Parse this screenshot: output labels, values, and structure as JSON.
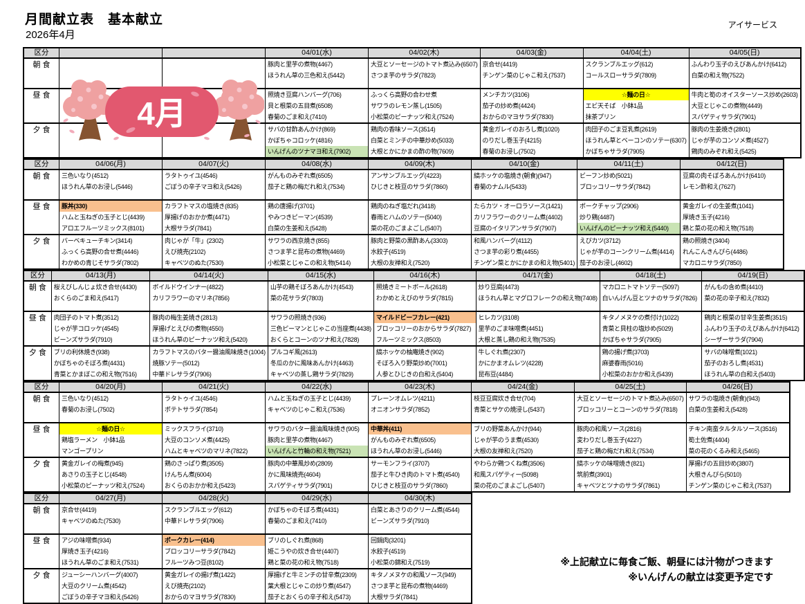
{
  "header": {
    "title": "月間献立表　基本献立",
    "subtitle": "2026年4月",
    "company": "アイサービス"
  },
  "month_badge": "4月",
  "labels": {
    "kubun": "区分",
    "meals": [
      {
        "key": "b",
        "label": "朝 食"
      },
      {
        "key": "l",
        "label": "昼 食"
      },
      {
        "key": "d",
        "label": "夕 食"
      }
    ]
  },
  "notes": [
    "※上記献立に毎食ご飯、朝昼には汁物がつきます",
    "※いんげんの献立は変更予定です"
  ],
  "highlight_colors": {
    "yellow": "#ffff00",
    "orange": "#f9c08e",
    "green": "#c9e3b4"
  },
  "weeks": [
    {
      "days": [
        {
          "date": "",
          "b": [],
          "l": [],
          "d": []
        },
        {
          "date": "",
          "b": [],
          "l": [],
          "d": []
        },
        {
          "date": "04/01(水)",
          "b": [
            "豚肉と里芋の煮物(4467)",
            "ほうれん草の三色和え(5442)"
          ],
          "l": [
            "照焼き豆腐ハンバーグ(706)",
            "貝と根菜の五目煮(6508)",
            "春菊のごま和え(7410)"
          ],
          "d": [
            "サバの甘酢あんかけ(869)",
            "かぼちゃコロッケ(4816)",
            {
              "text": "いんげんのツナマヨ和え(7902)",
              "hl": "green"
            }
          ]
        },
        {
          "date": "04/02(木)",
          "b": [
            "大豆とソーセージのトマト煮込み(6507)",
            "さつま芋のサラダ(7823)"
          ],
          "l": [
            "ふっくら高野の合わせ煮",
            "サワラのレモン蒸し(1505)",
            "小松菜のピーナッツ和え(7524)"
          ],
          "d": [
            "鶏肉の香味ソース(3514)",
            "白菜とミンチの中華炒め(5033)",
            "大根とかにかまの酢の物(7609)"
          ]
        },
        {
          "date": "04/03(金)",
          "b": [
            "京合せ(4419)",
            "チンゲン菜のじゃこ和え(7537)"
          ],
          "l": [
            "メンチカツ(3106)",
            "茄子の炒め煮(4424)",
            "おからのマヨサラダ(7830)"
          ],
          "d": [
            "黄金ガレイのおろし煮(1020)",
            "のりだし巻玉子(4215)",
            "春菊のお浸し(7502)"
          ]
        },
        {
          "date": "04/04(土)",
          "b": [
            "スクランブルエッグ(612)",
            "コールスローサラダ(7809)"
          ],
          "l": [
            {
              "text": "☆麺の日☆",
              "hl": "yellow"
            },
            "エビ天そば　小鉢1品",
            "抹茶プリン"
          ],
          "d": [
            "肉団子のごま豆乳煮(2619)",
            "ほうれん草とベーコンのソテー(6307)",
            "かぼちゃサラダ(7905)"
          ]
        },
        {
          "date": "04/05(日)",
          "b": [
            "ふんわり玉子のえびあんかけ(6412)",
            "白菜の和え物(7522)"
          ],
          "l": [
            "牛肉と筍のオイスターソース炒め(2603)",
            "大豆とじゃこの煮物(4449)",
            "スパゲティサラダ(7901)"
          ],
          "d": [
            "豚肉の生姜焼き(2801)",
            "じゃが芋のコンソメ煮(4527)",
            "鶏肉のみぞれ和え(5425)"
          ]
        }
      ]
    },
    {
      "days": [
        {
          "date": "04/06(月)",
          "b": [
            "三色いなり(4512)",
            "ほうれん草のお浸し(5446)"
          ],
          "l": [
            {
              "text": "豚丼(330)",
              "hl": "orange"
            },
            "ハムと玉ねぎの玉子とじ(4439)",
            "アロエフルーツミックス(8101)"
          ],
          "d": [
            "バーベキューチキン(3414)",
            "ふっくら高野の合せ煮(4446)",
            "わかめの青じそサラダ(7802)"
          ]
        },
        {
          "date": "04/07(火)",
          "b": [
            "ラタトゥイユ(4546)",
            "ごぼうの辛子マヨ和え(5426)"
          ],
          "l": [
            "カラフトマスの塩焼き(835)",
            "厚揚げのおかか煮(4471)",
            "大根サラダ(7841)"
          ],
          "d": [
            "肉じゃが「牛」(2302)",
            "えび焼売(2102)",
            "キャベツのぬた(7530)"
          ]
        },
        {
          "date": "04/08(水)",
          "b": [
            "がんものみぞれ煮(6505)",
            "茄子と鶏の梅だれ和え(7534)"
          ],
          "l": [
            "鶏の唐揚げ(3701)",
            "やみつきピーマン(4539)",
            "白菜の生姜和え(5428)"
          ],
          "d": [
            "サワラの西京焼き(855)",
            "さつま芋と昆布の煮物(4469)",
            "小松菜とじゃこの和え物(5414)"
          ]
        },
        {
          "date": "04/09(木)",
          "b": [
            "アンサンブルエッグ(4223)",
            "ひじきと枝豆のサラダ(7860)"
          ],
          "l": [
            "鶏肉のねぎ塩だれ(3418)",
            "春雨とハムのソテー(5040)",
            "菜の花のごまよごし(5407)"
          ],
          "d": [
            "豚肉と野菜の黒酢あん(3303)",
            "水餃子(4519)",
            "大根の友禅和え(7520)"
          ]
        },
        {
          "date": "04/10(金)",
          "b": [
            "縞ホッケの塩焼き(朝食)(947)",
            "春菊のナムル(5433)"
          ],
          "l": [
            "たらカツ・オーロラソース(1421)",
            "カリフラワーのクリーム煮(4402)",
            "豆腐のイタリアンサラダ(7907)"
          ],
          "d": [
            "和風ハンバーグ(4112)",
            "さつま芋の彩り煮(4455)",
            "チンゲン菜とかにかまの和え物(5401)"
          ]
        },
        {
          "date": "04/11(土)",
          "b": [
            "ビーフン炒め(5021)",
            "ブロッコリーサラダ(7842)"
          ],
          "l": [
            "ポークチャップ(2906)",
            "炒り鶏(4487)",
            {
              "text": "いんげんのピーナッツ和え(5440)",
              "hl": "green"
            }
          ],
          "d": [
            "えびカツ(3712)",
            "じゃが芋のコーンクリーム煮(4414)",
            "茄子のお浸し(4602)"
          ]
        },
        {
          "date": "04/12(日)",
          "b": [
            "豆腐の肉そぼろあんかけ(6410)",
            "レモン酢和え(7627)"
          ],
          "l": [
            "黄金ガレイの生姜煮(1041)",
            "厚焼き玉子(4216)",
            "鶏と菜の花の和え物(7518)"
          ],
          "d": [
            "鶏の照焼き(3404)",
            "れんこんきんぴら(4486)",
            "マカロニサラダ(7850)"
          ]
        }
      ]
    },
    {
      "days": [
        {
          "date": "04/13(月)",
          "b": [
            "桜えびしんじょ炊き合せ(4430)",
            "おくらのごま和え(5417)"
          ],
          "l": [
            "肉団子のトマト煮(3512)",
            "じゃが芋コロッケ(4545)",
            "ビーンズサラダ(7910)"
          ],
          "d": [
            "ブリの利休焼き(938)",
            "かぼちゃのそぼろ煮(4431)",
            "青菜とかまぼこの和え物(7516)"
          ]
        },
        {
          "date": "04/14(火)",
          "b": [
            "ボイルドウインナー(4822)",
            "カリフラワーのマリネ(7856)"
          ],
          "l": [
            "豚肉の梅生姜焼き(2813)",
            "厚揚げとえびの煮物(4550)",
            "ほうれん草のピーナッツ和え(5420)"
          ],
          "d": [
            "カラフトマスのバター醤油風味焼き(1004)",
            "焼豚ソテー(5012)",
            "中華ドレサラダ(7906)"
          ]
        },
        {
          "date": "04/15(水)",
          "b": [
            "山芋の鶏そぼろあんかけ(4543)",
            "菜の花サラダ(7803)"
          ],
          "l": [
            "サワラの照焼き(936)",
            "三色ピーマンとじゃこの当座煮(4438)",
            "おくらとコーンのツナ和え(7828)"
          ],
          "d": [
            "プルコギ風(2613)",
            "冬瓜のかに風味あんかけ(4463)",
            "キャベツの蒸し鶏サラダ(7829)"
          ]
        },
        {
          "date": "04/16(木)",
          "b": [
            "照焼きミートボール(2618)",
            "わかめとえびのサラダ(7815)"
          ],
          "l": [
            {
              "text": "マイルドビーフカレー(421)",
              "hl": "orange"
            },
            "ブロッコリーのおからサラダ(7827)",
            "フルーツミックス(8503)"
          ],
          "d": [
            "縞ホッケの柚庵焼き(902)",
            "そぼろ入り野菜炒め(7001)",
            "人参とひじきの白和え(5404)"
          ]
        },
        {
          "date": "04/17(金)",
          "b": [
            "炒り豆腐(4473)",
            "ほうれん草とマグロフレークの和え物(7408)"
          ],
          "l": [
            "ヒレカツ(3108)",
            "里芋のごま味噌煮(4451)",
            "大根と蒸し鶏の和え物(7535)"
          ],
          "d": [
            "牛しぐれ煮(2307)",
            "かにかまオムレツ(4228)",
            "昆布豆(4484)"
          ]
        },
        {
          "date": "04/18(土)",
          "b": [
            "マカロニトマトソテー(5097)",
            "白いんげん豆とツナのサラダ(7826)"
          ],
          "l": [
            "キタノメヌケの煮付け(1022)",
            "青菜と貝柱の塩炒め(5029)",
            "かぼちゃサラダ(7905)"
          ],
          "d": [
            "鶏の揚げ煮(3703)",
            "麻婆春雨(5016)",
            "小松菜のおかか和え(5439)"
          ]
        },
        {
          "date": "04/19(日)",
          "b": [
            "がんもの含め煮(4410)",
            "菜の花の辛子和え(7832)"
          ],
          "l": [
            "鶏肉と根菜の甘辛生姜煮(3515)",
            "ふんわり玉子のえびあんかけ(6412)",
            "シーザーサラダ(7904)"
          ],
          "d": [
            "サバの味噌煮(1021)",
            "茄子のおろし煮(4531)",
            "ほうれん草の白和え(5403)"
          ]
        }
      ]
    },
    {
      "days": [
        {
          "date": "04/20(月)",
          "b": [
            "三色いなり(4512)",
            "春菊のお浸し(7502)"
          ],
          "l": [
            {
              "text": "☆麺の日☆",
              "hl": "yellow"
            },
            "鶏塩ラーメン　小鉢1品",
            "マンゴープリン"
          ],
          "d": [
            "黄金ガレイの梅煮(945)",
            "あさりの玉子とじ(4548)",
            "小松菜のピーナッツ和え(7524)"
          ]
        },
        {
          "date": "04/21(火)",
          "b": [
            "ラタトゥイユ(4546)",
            "ポテトサラダ(7854)"
          ],
          "l": [
            "ミックスフライ(3710)",
            "大豆のコンソメ煮(4425)",
            "ハムとキャベツのマリネ(7822)"
          ],
          "d": [
            "鶏のさっぱり煮(3505)",
            "けんちん煮(6004)",
            "おくらのおかか和え(5423)"
          ]
        },
        {
          "date": "04/22(水)",
          "b": [
            "ハムと玉ねぎの玉子とじ(4439)",
            "キャベツのじゃこ和え(7536)"
          ],
          "l": [
            "サワラのバター醤油風味焼き(905)",
            "豚肉と里芋の煮物(4467)",
            {
              "text": "いんげんと竹輪の和え物(7521)",
              "hl": "green"
            }
          ],
          "d": [
            "豚肉の中華風炒め(2809)",
            "かに風味焼売(4604)",
            "スパゲティサラダ(7901)"
          ]
        },
        {
          "date": "04/23(木)",
          "b": [
            "プレーンオムレツ(4211)",
            "オニオンサラダ(7852)"
          ],
          "l": [
            {
              "text": "中華丼(411)",
              "hl": "orange"
            },
            "がんものみぞれ煮(6505)",
            "ほうれん草のお浸し(5446)"
          ],
          "d": [
            "サーモンフライ(3707)",
            "茄子と牛ひき肉のトマト煮(4540)",
            "ひじきと枝豆のサラダ(7860)"
          ]
        },
        {
          "date": "04/24(金)",
          "b": [
            "枝豆豆腐炊き合せ(704)",
            "青菜とサケの焼浸し(5437)"
          ],
          "l": [
            "ブリの野菜あんかけ(944)",
            "じゃが芋のうま煮(4530)",
            "大根の友禅和え(7520)"
          ],
          "d": [
            "やわらか鶏つくね煮(3506)",
            "和風スパゲティー(5098)",
            "菜の花のごまよごし(5407)"
          ]
        },
        {
          "date": "04/25(土)",
          "b": [
            "大豆とソーセージのトマト煮込み(6507)",
            "ブロッコリーとコーンのサラダ(7818)"
          ],
          "l": [
            "豚肉の和風ソース(2816)",
            "変わりだし巻玉子(4227)",
            "茄子と鶏の梅だれ和え(7534)"
          ],
          "d": [
            "縞ホッケの味噌焼き(821)",
            "筑前煮(3901)",
            "キャベツとツナのサラダ(7861)"
          ]
        },
        {
          "date": "04/26(日)",
          "b": [
            "サワラの塩焼き(朝食)(943)",
            "白菜の生姜和え(5428)"
          ],
          "l": [
            "チキン南蛮タルタルソース(3516)",
            "筍土佐煮(4404)",
            "菜の花のくるみ和え(5465)"
          ],
          "d": [
            "厚揚げの五目炒め(3807)",
            "大根きんぴら(5010)",
            "チンゲン菜のじゃこ和え(7537)"
          ]
        }
      ]
    },
    {
      "days": [
        {
          "date": "04/27(月)",
          "b": [
            "京合せ(4419)",
            "キャベツのぬた(7530)"
          ],
          "l": [
            "アジの味噌煮(934)",
            "厚焼き玉子(4216)",
            "ほうれん草のごま和え(7531)"
          ],
          "d": [
            "ジューシーハンバーグ(4007)",
            "大豆のクリーム煮(4542)",
            "ごぼうの辛子マヨ和え(5426)"
          ]
        },
        {
          "date": "04/28(火)",
          "b": [
            "スクランブルエッグ(612)",
            "中華ドレサラダ(7906)"
          ],
          "l": [
            {
              "text": "ポークカレー(414)",
              "hl": "orange"
            },
            "ブロッコリーサラダ(7842)",
            "フルーツみつ豆(8102)"
          ],
          "d": [
            "黄金ガレイの揚げ煮(1422)",
            "えび焼売(2102)",
            "おからのマヨサラダ(7830)"
          ]
        },
        {
          "date": "04/29(水)",
          "b": [
            "かぼちゃのそぼろ煮(4431)",
            "春菊のごま和え(7410)"
          ],
          "l": [
            "ブリのしぐれ煮(868)",
            "姫こうやの炊き合せ(4407)",
            "鶏と菜の花の和え物(7518)"
          ],
          "d": [
            "厚揚げと牛ミンチの甘辛煮(2309)",
            "葉大根とじゃこの炒り煮(4547)",
            "茄子とおくらの辛子和え(5473)"
          ]
        },
        {
          "date": "04/30(木)",
          "b": [
            "白菜とあさりのクリーム煮(4544)",
            "ビーンズサラダ(7910)"
          ],
          "l": [
            "回鍋肉(3201)",
            "水餃子(4519)",
            "小松菜の錦和え(7519)"
          ],
          "d": [
            "キタノメヌケの和風ソース(949)",
            "さつま芋と昆布の煮物(4469)",
            "大根サラダ(7841)"
          ]
        }
      ]
    }
  ]
}
